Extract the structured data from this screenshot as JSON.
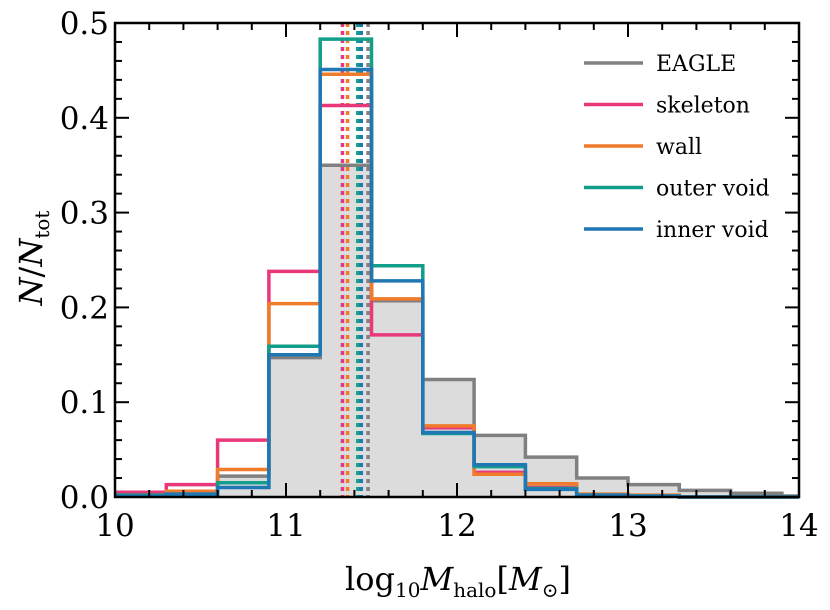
{
  "chart_data": {
    "type": "histogram-step",
    "xlabel": "log10 M_halo [M_⊙]",
    "ylabel": "N / N_tot",
    "xlim": [
      10,
      14
    ],
    "ylim": [
      0,
      0.5
    ],
    "xticks": [
      "10",
      "11",
      "12",
      "13",
      "14"
    ],
    "yticks": [
      "0.0",
      "0.1",
      "0.2",
      "0.3",
      "0.4",
      "0.5"
    ],
    "bin_edges": [
      10.0,
      10.3,
      10.6,
      10.9,
      11.2,
      11.5,
      11.8,
      12.1,
      12.4,
      12.7,
      13.0,
      13.3,
      13.6,
      13.9,
      14.0
    ],
    "legend_position": "top-right",
    "grid": false,
    "series": [
      {
        "name": "EAGLE",
        "color": "#808080",
        "filled": true,
        "fill_color": "#dcdcdc",
        "median": 11.48,
        "values": [
          0.003,
          0.006,
          0.022,
          0.147,
          0.35,
          0.207,
          0.124,
          0.065,
          0.042,
          0.02,
          0.013,
          0.007,
          0.004,
          0.001
        ]
      },
      {
        "name": "skeleton",
        "color": "#e8387a",
        "filled": false,
        "median": 11.33,
        "values": [
          0.005,
          0.013,
          0.06,
          0.238,
          0.413,
          0.171,
          0.073,
          0.026,
          0.01,
          0.002,
          0.001,
          0.0,
          0.0,
          0.0
        ]
      },
      {
        "name": "wall",
        "color": "#f07b2b",
        "filled": false,
        "median": 11.36,
        "values": [
          0.002,
          0.006,
          0.029,
          0.204,
          0.446,
          0.209,
          0.075,
          0.024,
          0.014,
          0.003,
          0.002,
          0.0,
          0.0,
          0.0
        ]
      },
      {
        "name": "outer void",
        "color": "#119e8a",
        "filled": false,
        "median": 11.42,
        "values": [
          0.002,
          0.003,
          0.015,
          0.159,
          0.483,
          0.244,
          0.067,
          0.032,
          0.009,
          0.002,
          0.001,
          0.0,
          0.0,
          0.0
        ]
      },
      {
        "name": "inner void",
        "color": "#1f77b4",
        "filled": false,
        "median": 11.44,
        "values": [
          0.001,
          0.003,
          0.01,
          0.15,
          0.451,
          0.228,
          0.068,
          0.034,
          0.008,
          0.002,
          0.001,
          0.0,
          0.0,
          0.0
        ]
      }
    ]
  }
}
